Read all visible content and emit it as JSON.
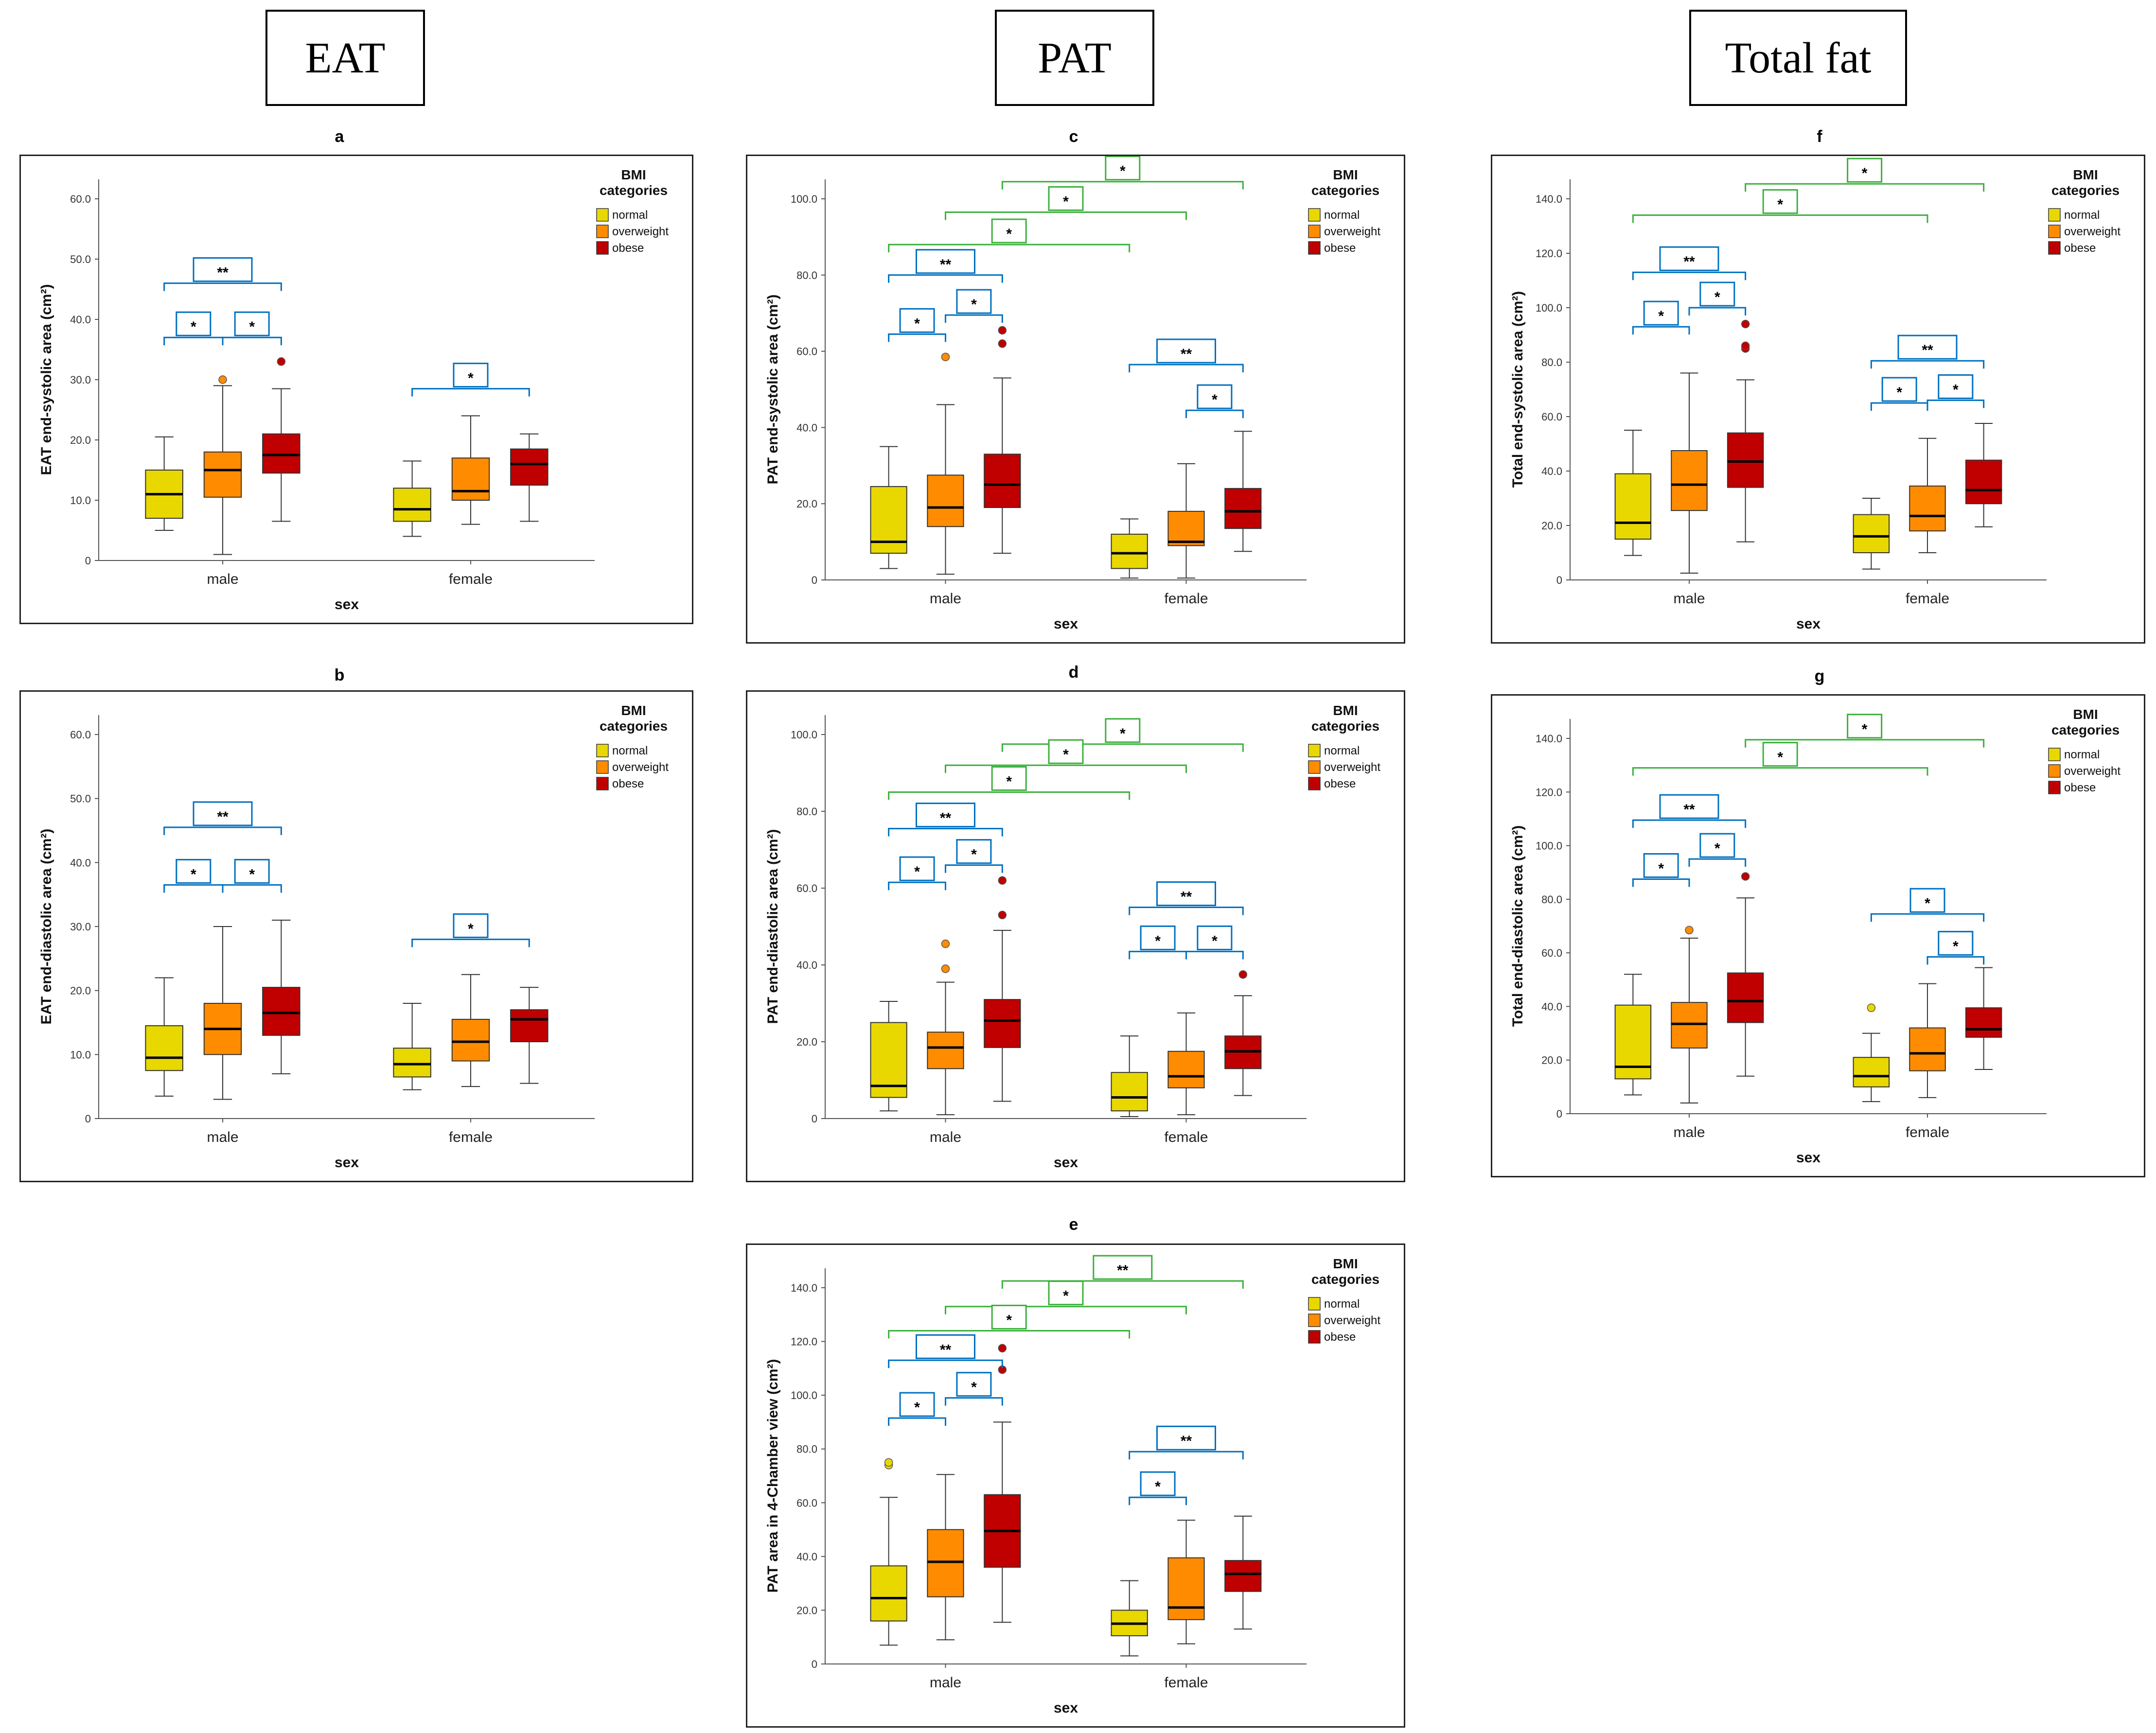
{
  "headers": {
    "eat": "EAT",
    "pat": "PAT",
    "total": "Total fat"
  },
  "legend": {
    "title_line1": "BMI",
    "title_line2": "categories",
    "items": [
      "normal",
      "overweight",
      "obese"
    ],
    "colors": [
      "#E8D800",
      "#FF8C00",
      "#C00000"
    ]
  },
  "chart_data": [
    {
      "id": "a",
      "type": "boxplot",
      "xlabel": "sex",
      "ylabel": "EAT end-systolic area  (cm²)",
      "ylim": [
        0,
        60
      ],
      "yticks": [
        "0",
        "10.0",
        "20.0",
        "30.0",
        "40.0",
        "50.0",
        "60.0"
      ],
      "categories": [
        "male",
        "female"
      ],
      "boxes": [
        {
          "group": "male",
          "bmi": "normal",
          "whislo": 5,
          "q1": 7,
          "med": 11,
          "q3": 15,
          "whishi": 20.5,
          "outliers": []
        },
        {
          "group": "male",
          "bmi": "overweight",
          "whislo": 1,
          "q1": 10.5,
          "med": 15,
          "q3": 18,
          "whishi": 29,
          "outliers": [
            30
          ]
        },
        {
          "group": "male",
          "bmi": "obese",
          "whislo": 6.5,
          "q1": 14.5,
          "med": 17.5,
          "q3": 21,
          "whishi": 28.5,
          "outliers": [
            33
          ]
        },
        {
          "group": "female",
          "bmi": "normal",
          "whislo": 4,
          "q1": 6.5,
          "med": 8.5,
          "q3": 12,
          "whishi": 16.5,
          "outliers": []
        },
        {
          "group": "female",
          "bmi": "overweight",
          "whislo": 6,
          "q1": 10,
          "med": 11.5,
          "q3": 17,
          "whishi": 24,
          "outliers": []
        },
        {
          "group": "female",
          "bmi": "obese",
          "whislo": 6.5,
          "q1": 12.5,
          "med": 16,
          "q3": 18.5,
          "whishi": 21,
          "outliers": []
        }
      ],
      "brackets": [
        {
          "from": 0,
          "to": 2,
          "level": 46,
          "label": "**",
          "color": "#0070C0"
        },
        {
          "from": 0,
          "to": 1,
          "level": 37,
          "label": "*",
          "color": "#0070C0"
        },
        {
          "from": 1,
          "to": 2,
          "level": 37,
          "label": "*",
          "color": "#0070C0"
        },
        {
          "from": 3,
          "to": 5,
          "level": 28.5,
          "label": "*",
          "color": "#0070C0"
        }
      ]
    },
    {
      "id": "b",
      "type": "boxplot",
      "xlabel": "sex",
      "ylabel": "EAT end-diastolic area  (cm²)",
      "ylim": [
        0,
        60
      ],
      "yticks": [
        "0",
        "10.0",
        "20.0",
        "30.0",
        "40.0",
        "50.0",
        "60.0"
      ],
      "categories": [
        "male",
        "female"
      ],
      "boxes": [
        {
          "group": "male",
          "bmi": "normal",
          "whislo": 3.5,
          "q1": 7.5,
          "med": 9.5,
          "q3": 14.5,
          "whishi": 22,
          "outliers": []
        },
        {
          "group": "male",
          "bmi": "overweight",
          "whislo": 3,
          "q1": 10,
          "med": 14,
          "q3": 18,
          "whishi": 30,
          "outliers": []
        },
        {
          "group": "male",
          "bmi": "obese",
          "whislo": 7,
          "q1": 13,
          "med": 16.5,
          "q3": 20.5,
          "whishi": 31,
          "outliers": []
        },
        {
          "group": "female",
          "bmi": "normal",
          "whislo": 4.5,
          "q1": 6.5,
          "med": 8.5,
          "q3": 11,
          "whishi": 18,
          "outliers": []
        },
        {
          "group": "female",
          "bmi": "overweight",
          "whislo": 5,
          "q1": 9,
          "med": 12,
          "q3": 15.5,
          "whishi": 22.5,
          "outliers": []
        },
        {
          "group": "female",
          "bmi": "obese",
          "whislo": 5.5,
          "q1": 12,
          "med": 15.5,
          "q3": 17,
          "whishi": 20.5,
          "outliers": []
        }
      ],
      "brackets": [
        {
          "from": 0,
          "to": 2,
          "level": 45.5,
          "label": "**",
          "color": "#0070C0"
        },
        {
          "from": 0,
          "to": 1,
          "level": 36.5,
          "label": "*",
          "color": "#0070C0"
        },
        {
          "from": 1,
          "to": 2,
          "level": 36.5,
          "label": "*",
          "color": "#0070C0"
        },
        {
          "from": 3,
          "to": 5,
          "level": 28,
          "label": "*",
          "color": "#0070C0"
        }
      ]
    },
    {
      "id": "c",
      "type": "boxplot",
      "xlabel": "sex",
      "ylabel": "PAT end-systolic area  (cm²)",
      "ylim": [
        0,
        100
      ],
      "yticks": [
        "0",
        "20.0",
        "40.0",
        "60.0",
        "80.0",
        "100.0"
      ],
      "categories": [
        "male",
        "female"
      ],
      "boxes": [
        {
          "group": "male",
          "bmi": "normal",
          "whislo": 3,
          "q1": 7,
          "med": 10,
          "q3": 24.5,
          "whishi": 35,
          "outliers": []
        },
        {
          "group": "male",
          "bmi": "overweight",
          "whislo": 1.5,
          "q1": 14,
          "med": 19,
          "q3": 27.5,
          "whishi": 46,
          "outliers": [
            58.5
          ]
        },
        {
          "group": "male",
          "bmi": "obese",
          "whislo": 7,
          "q1": 19,
          "med": 25,
          "q3": 33,
          "whishi": 53,
          "outliers": [
            62,
            65.5
          ]
        },
        {
          "group": "female",
          "bmi": "normal",
          "whislo": 0.5,
          "q1": 3,
          "med": 7,
          "q3": 12,
          "whishi": 16,
          "outliers": []
        },
        {
          "group": "female",
          "bmi": "overweight",
          "whislo": 0.5,
          "q1": 9,
          "med": 10,
          "q3": 18,
          "whishi": 30.5,
          "outliers": []
        },
        {
          "group": "female",
          "bmi": "obese",
          "whislo": 7.5,
          "q1": 13.5,
          "med": 18,
          "q3": 24,
          "whishi": 39,
          "outliers": []
        }
      ],
      "brackets": [
        {
          "from": 2,
          "to": 5,
          "level": 104.5,
          "label": "*",
          "color": "#3BB03B"
        },
        {
          "from": 1,
          "to": 4,
          "level": 96.5,
          "label": "*",
          "color": "#3BB03B"
        },
        {
          "from": 0,
          "to": 3,
          "level": 88,
          "label": "*",
          "color": "#3BB03B"
        },
        {
          "from": 0,
          "to": 2,
          "level": 80,
          "label": "**",
          "color": "#0070C0"
        },
        {
          "from": 0,
          "to": 1,
          "level": 64.5,
          "label": "*",
          "color": "#0070C0"
        },
        {
          "from": 1,
          "to": 2,
          "level": 69.5,
          "label": "*",
          "color": "#0070C0"
        },
        {
          "from": 3,
          "to": 5,
          "level": 56.5,
          "label": "**",
          "color": "#0070C0"
        },
        {
          "from": 4,
          "to": 5,
          "level": 44.5,
          "label": "*",
          "color": "#0070C0"
        }
      ]
    },
    {
      "id": "d",
      "type": "boxplot",
      "xlabel": "sex",
      "ylabel": "PAT end-diastolic area  (cm²)",
      "ylim": [
        0,
        100
      ],
      "yticks": [
        "0",
        "20.0",
        "40.0",
        "60.0",
        "80.0",
        "100.0"
      ],
      "categories": [
        "male",
        "female"
      ],
      "boxes": [
        {
          "group": "male",
          "bmi": "normal",
          "whislo": 2,
          "q1": 5.5,
          "med": 8.5,
          "q3": 25,
          "whishi": 30.5,
          "outliers": []
        },
        {
          "group": "male",
          "bmi": "overweight",
          "whislo": 1,
          "q1": 13,
          "med": 18.5,
          "q3": 22.5,
          "whishi": 35.5,
          "outliers": [
            39,
            45.5
          ]
        },
        {
          "group": "male",
          "bmi": "obese",
          "whislo": 4.5,
          "q1": 18.5,
          "med": 25.5,
          "q3": 31,
          "whishi": 49,
          "outliers": [
            53,
            62
          ]
        },
        {
          "group": "female",
          "bmi": "normal",
          "whislo": 0.5,
          "q1": 2,
          "med": 5.5,
          "q3": 12,
          "whishi": 21.5,
          "outliers": []
        },
        {
          "group": "female",
          "bmi": "overweight",
          "whislo": 1,
          "q1": 8,
          "med": 11,
          "q3": 17.5,
          "whishi": 27.5,
          "outliers": []
        },
        {
          "group": "female",
          "bmi": "obese",
          "whislo": 6,
          "q1": 13,
          "med": 17.5,
          "q3": 21.5,
          "whishi": 32,
          "outliers": [
            37.5
          ]
        }
      ],
      "brackets": [
        {
          "from": 2,
          "to": 5,
          "level": 97.5,
          "label": "*",
          "color": "#3BB03B"
        },
        {
          "from": 1,
          "to": 4,
          "level": 92,
          "label": "*",
          "color": "#3BB03B"
        },
        {
          "from": 0,
          "to": 3,
          "level": 85,
          "label": "*",
          "color": "#3BB03B"
        },
        {
          "from": 0,
          "to": 2,
          "level": 75.5,
          "label": "**",
          "color": "#0070C0"
        },
        {
          "from": 0,
          "to": 1,
          "level": 61.5,
          "label": "*",
          "color": "#0070C0"
        },
        {
          "from": 1,
          "to": 2,
          "level": 66,
          "label": "*",
          "color": "#0070C0"
        },
        {
          "from": 3,
          "to": 5,
          "level": 55,
          "label": "**",
          "color": "#0070C0"
        },
        {
          "from": 3,
          "to": 4,
          "level": 43.5,
          "label": "*",
          "color": "#0070C0"
        },
        {
          "from": 4,
          "to": 5,
          "level": 43.5,
          "label": "*",
          "color": "#0070C0"
        }
      ]
    },
    {
      "id": "e",
      "type": "boxplot",
      "xlabel": "sex",
      "ylabel": "PAT area in 4-Chamber view  (cm²)",
      "ylim": [
        0,
        140
      ],
      "yticks": [
        "0",
        "20.0",
        "40.0",
        "60.0",
        "80.0",
        "100.0",
        "120.0",
        "140.0"
      ],
      "categories": [
        "male",
        "female"
      ],
      "boxes": [
        {
          "group": "male",
          "bmi": "normal",
          "whislo": 7,
          "q1": 16,
          "med": 24.5,
          "q3": 36.5,
          "whishi": 62,
          "outliers": [
            74,
            75
          ]
        },
        {
          "group": "male",
          "bmi": "overweight",
          "whislo": 9,
          "q1": 25,
          "med": 38,
          "q3": 50,
          "whishi": 70.5,
          "outliers": []
        },
        {
          "group": "male",
          "bmi": "obese",
          "whislo": 15.5,
          "q1": 36,
          "med": 49.5,
          "q3": 63,
          "whishi": 90,
          "outliers": [
            109.5,
            117.5
          ]
        },
        {
          "group": "female",
          "bmi": "normal",
          "whislo": 3,
          "q1": 10.5,
          "med": 15,
          "q3": 20,
          "whishi": 31,
          "outliers": []
        },
        {
          "group": "female",
          "bmi": "overweight",
          "whislo": 7.5,
          "q1": 16.5,
          "med": 21,
          "q3": 39.5,
          "whishi": 53.5,
          "outliers": []
        },
        {
          "group": "female",
          "bmi": "obese",
          "whislo": 13,
          "q1": 27,
          "med": 33.5,
          "q3": 38.5,
          "whishi": 55,
          "outliers": []
        }
      ],
      "brackets": [
        {
          "from": 2,
          "to": 5,
          "level": 142.5,
          "label": "**",
          "color": "#3BB03B"
        },
        {
          "from": 1,
          "to": 4,
          "level": 133,
          "label": "*",
          "color": "#3BB03B"
        },
        {
          "from": 0,
          "to": 3,
          "level": 124,
          "label": "*",
          "color": "#3BB03B"
        },
        {
          "from": 0,
          "to": 2,
          "level": 113,
          "label": "**",
          "color": "#0070C0"
        },
        {
          "from": 0,
          "to": 1,
          "level": 91.5,
          "label": "*",
          "color": "#0070C0"
        },
        {
          "from": 1,
          "to": 2,
          "level": 99,
          "label": "*",
          "color": "#0070C0"
        },
        {
          "from": 3,
          "to": 5,
          "level": 79,
          "label": "**",
          "color": "#0070C0"
        },
        {
          "from": 3,
          "to": 4,
          "level": 62,
          "label": "*",
          "color": "#0070C0"
        }
      ]
    },
    {
      "id": "f",
      "type": "boxplot",
      "xlabel": "sex",
      "ylabel": "Total end-systolic area  (cm²)",
      "ylim": [
        0,
        140
      ],
      "yticks": [
        "0",
        "20.0",
        "40.0",
        "60.0",
        "80.0",
        "100.0",
        "120.0",
        "140.0"
      ],
      "categories": [
        "male",
        "female"
      ],
      "boxes": [
        {
          "group": "male",
          "bmi": "normal",
          "whislo": 9,
          "q1": 15,
          "med": 21,
          "q3": 39,
          "whishi": 55,
          "outliers": []
        },
        {
          "group": "male",
          "bmi": "overweight",
          "whislo": 2.5,
          "q1": 25.5,
          "med": 35,
          "q3": 47.5,
          "whishi": 76,
          "outliers": []
        },
        {
          "group": "male",
          "bmi": "obese",
          "whislo": 14,
          "q1": 34,
          "med": 43.5,
          "q3": 54,
          "whishi": 73.5,
          "outliers": [
            85,
            86,
            94
          ]
        },
        {
          "group": "female",
          "bmi": "normal",
          "whislo": 4,
          "q1": 10,
          "med": 16,
          "q3": 24,
          "whishi": 30,
          "outliers": []
        },
        {
          "group": "female",
          "bmi": "overweight",
          "whislo": 10,
          "q1": 18,
          "med": 23.5,
          "q3": 34.5,
          "whishi": 52,
          "outliers": []
        },
        {
          "group": "female",
          "bmi": "obese",
          "whislo": 19.5,
          "q1": 28,
          "med": 33,
          "q3": 44,
          "whishi": 57.5,
          "outliers": []
        }
      ],
      "brackets": [
        {
          "from": 2,
          "to": 5,
          "level": 145.5,
          "label": "*",
          "color": "#3BB03B"
        },
        {
          "from": 0,
          "to": 4,
          "level": 134,
          "label": "*",
          "color": "#3BB03B"
        },
        {
          "from": 0,
          "to": 2,
          "level": 113,
          "label": "**",
          "color": "#0070C0"
        },
        {
          "from": 0,
          "to": 1,
          "level": 93,
          "label": "*",
          "color": "#0070C0"
        },
        {
          "from": 1,
          "to": 2,
          "level": 100,
          "label": "*",
          "color": "#0070C0"
        },
        {
          "from": 3,
          "to": 5,
          "level": 80.5,
          "label": "**",
          "color": "#0070C0"
        },
        {
          "from": 3,
          "to": 4,
          "level": 65,
          "label": "*",
          "color": "#0070C0"
        },
        {
          "from": 4,
          "to": 5,
          "level": 66,
          "label": "*",
          "color": "#0070C0"
        }
      ]
    },
    {
      "id": "g",
      "type": "boxplot",
      "xlabel": "sex",
      "ylabel": "Total end-diastolic area  (cm²)",
      "ylim": [
        0,
        140
      ],
      "yticks": [
        "0",
        "20.0",
        "40.0",
        "60.0",
        "80.0",
        "100.0",
        "120.0",
        "140.0"
      ],
      "categories": [
        "male",
        "female"
      ],
      "boxes": [
        {
          "group": "male",
          "bmi": "normal",
          "whislo": 7,
          "q1": 13,
          "med": 17.5,
          "q3": 40.5,
          "whishi": 52,
          "outliers": []
        },
        {
          "group": "male",
          "bmi": "overweight",
          "whislo": 4,
          "q1": 24.5,
          "med": 33.5,
          "q3": 41.5,
          "whishi": 65.5,
          "outliers": [
            68.5
          ]
        },
        {
          "group": "male",
          "bmi": "obese",
          "whislo": 14,
          "q1": 34,
          "med": 42,
          "q3": 52.5,
          "whishi": 80.5,
          "outliers": [
            88.5
          ]
        },
        {
          "group": "female",
          "bmi": "normal",
          "whislo": 4.5,
          "q1": 10,
          "med": 14,
          "q3": 21,
          "whishi": 30,
          "outliers": [
            39.5
          ]
        },
        {
          "group": "female",
          "bmi": "overweight",
          "whislo": 6,
          "q1": 16,
          "med": 22.5,
          "q3": 32,
          "whishi": 48.5,
          "outliers": []
        },
        {
          "group": "female",
          "bmi": "obese",
          "whislo": 16.5,
          "q1": 28.5,
          "med": 31.5,
          "q3": 39.5,
          "whishi": 54.5,
          "outliers": []
        }
      ],
      "brackets": [
        {
          "from": 2,
          "to": 5,
          "level": 139.5,
          "label": "*",
          "color": "#3BB03B"
        },
        {
          "from": 0,
          "to": 4,
          "level": 129,
          "label": "*",
          "color": "#3BB03B"
        },
        {
          "from": 0,
          "to": 2,
          "level": 109.5,
          "label": "**",
          "color": "#0070C0"
        },
        {
          "from": 0,
          "to": 1,
          "level": 87.5,
          "label": "*",
          "color": "#0070C0"
        },
        {
          "from": 1,
          "to": 2,
          "level": 95,
          "label": "*",
          "color": "#0070C0"
        },
        {
          "from": 3,
          "to": 5,
          "level": 74.5,
          "label": "*",
          "color": "#0070C0"
        },
        {
          "from": 4,
          "to": 5,
          "level": 58.5,
          "label": "*",
          "color": "#0070C0"
        }
      ]
    }
  ]
}
